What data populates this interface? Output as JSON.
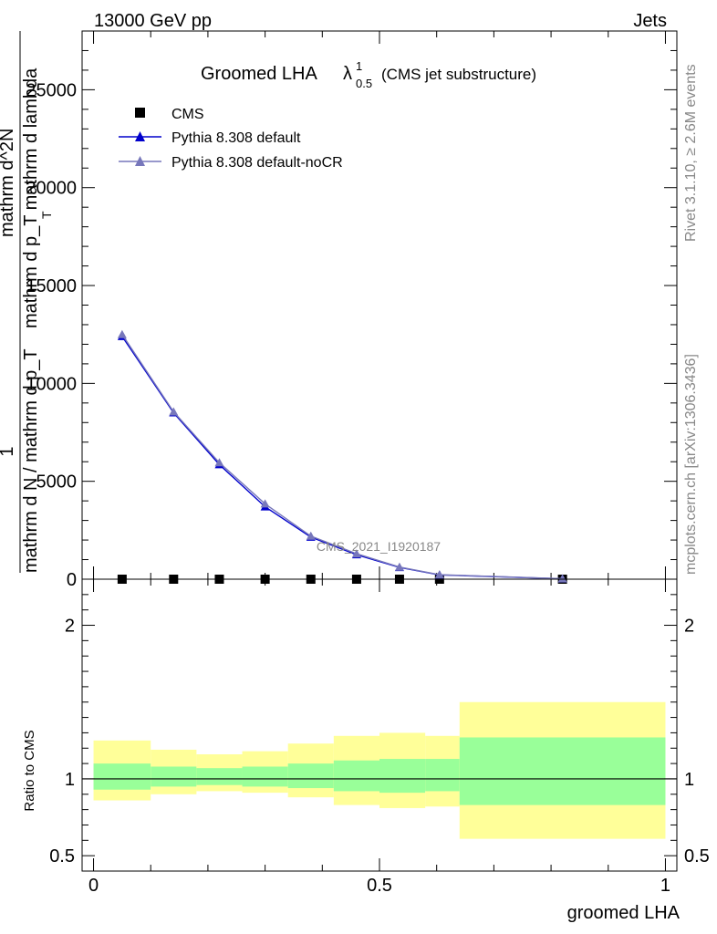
{
  "header": {
    "left": "13000 GeV pp",
    "right": "Jets"
  },
  "title": {
    "main": "Groomed LHA",
    "lambda": "λ",
    "sup": "1",
    "sub": "0.5",
    "note": "(CMS jet substructure)"
  },
  "watermark": "CMS_2021_I1920187",
  "side": {
    "rivet": "Rivet 3.1.10, ≥ 2.6M events",
    "mcplots": "mcplots.cern.ch [arXiv:1306.3436]"
  },
  "legend": [
    {
      "label": "CMS",
      "color": "#000000",
      "marker": "square"
    },
    {
      "label": "Pythia 8.308 default",
      "color": "#0000cc",
      "marker": "triangle"
    },
    {
      "label": "Pythia 8.308 default-noCR",
      "color": "#7777bb",
      "marker": "triangle"
    }
  ],
  "ylabel_main": {
    "one": "1",
    "denominator": "mathrm d N / mathrm d p_T",
    "subscript": "T",
    "numerator_top": "mathrm d^2N",
    "numerator_mid": "mathrm d p_T mathrm d lambda"
  },
  "ylabel_ratio": "Ratio to CMS",
  "xlabel": "groomed LHA",
  "chart_data": [
    {
      "type": "line",
      "panel": "main",
      "x": [
        0.05,
        0.14,
        0.22,
        0.3,
        0.38,
        0.46,
        0.535,
        0.605,
        0.82
      ],
      "series": [
        {
          "name": "CMS",
          "values": [
            0,
            0,
            0,
            0,
            0,
            0,
            0,
            0,
            0
          ]
        },
        {
          "name": "Pythia 8.308 default",
          "values": [
            12400,
            8500,
            5850,
            3700,
            2150,
            1250,
            600,
            220,
            20
          ]
        },
        {
          "name": "Pythia 8.308 default-noCR",
          "values": [
            12500,
            8550,
            5950,
            3850,
            2200,
            1300,
            620,
            230,
            22
          ]
        }
      ],
      "xlim": [
        -0.02,
        1.02
      ],
      "ylim": [
        0,
        28000
      ],
      "yticks": [
        0,
        5000,
        10000,
        15000,
        20000,
        25000
      ],
      "ytick_labels": [
        "0",
        "5000",
        "10000",
        "15000",
        "20000",
        "25000"
      ]
    },
    {
      "type": "area",
      "panel": "ratio",
      "bin_edges": [
        0,
        0.1,
        0.18,
        0.26,
        0.34,
        0.42,
        0.5,
        0.58,
        0.64,
        1.0
      ],
      "band_1sigma": {
        "lower": [
          0.93,
          0.95,
          0.96,
          0.95,
          0.94,
          0.92,
          0.91,
          0.92,
          0.83
        ],
        "upper": [
          1.1,
          1.08,
          1.07,
          1.08,
          1.1,
          1.12,
          1.13,
          1.13,
          1.27
        ]
      },
      "band_2sigma": {
        "lower": [
          0.86,
          0.9,
          0.92,
          0.91,
          0.88,
          0.83,
          0.81,
          0.82,
          0.61
        ],
        "upper": [
          1.25,
          1.19,
          1.16,
          1.18,
          1.23,
          1.28,
          1.3,
          1.28,
          1.5
        ]
      },
      "reference": 1,
      "ylim": [
        0.4,
        2.3
      ],
      "yticks": [
        0.5,
        1,
        2
      ],
      "ytick_labels": [
        "0.5",
        "1",
        "2"
      ],
      "xticks": [
        0,
        0.5,
        1
      ],
      "xtick_labels": [
        "0",
        "0.5",
        "1"
      ]
    }
  ],
  "colors": {
    "band_inner": "#99ff99",
    "band_outer": "#ffff99",
    "axis": "#000000"
  }
}
